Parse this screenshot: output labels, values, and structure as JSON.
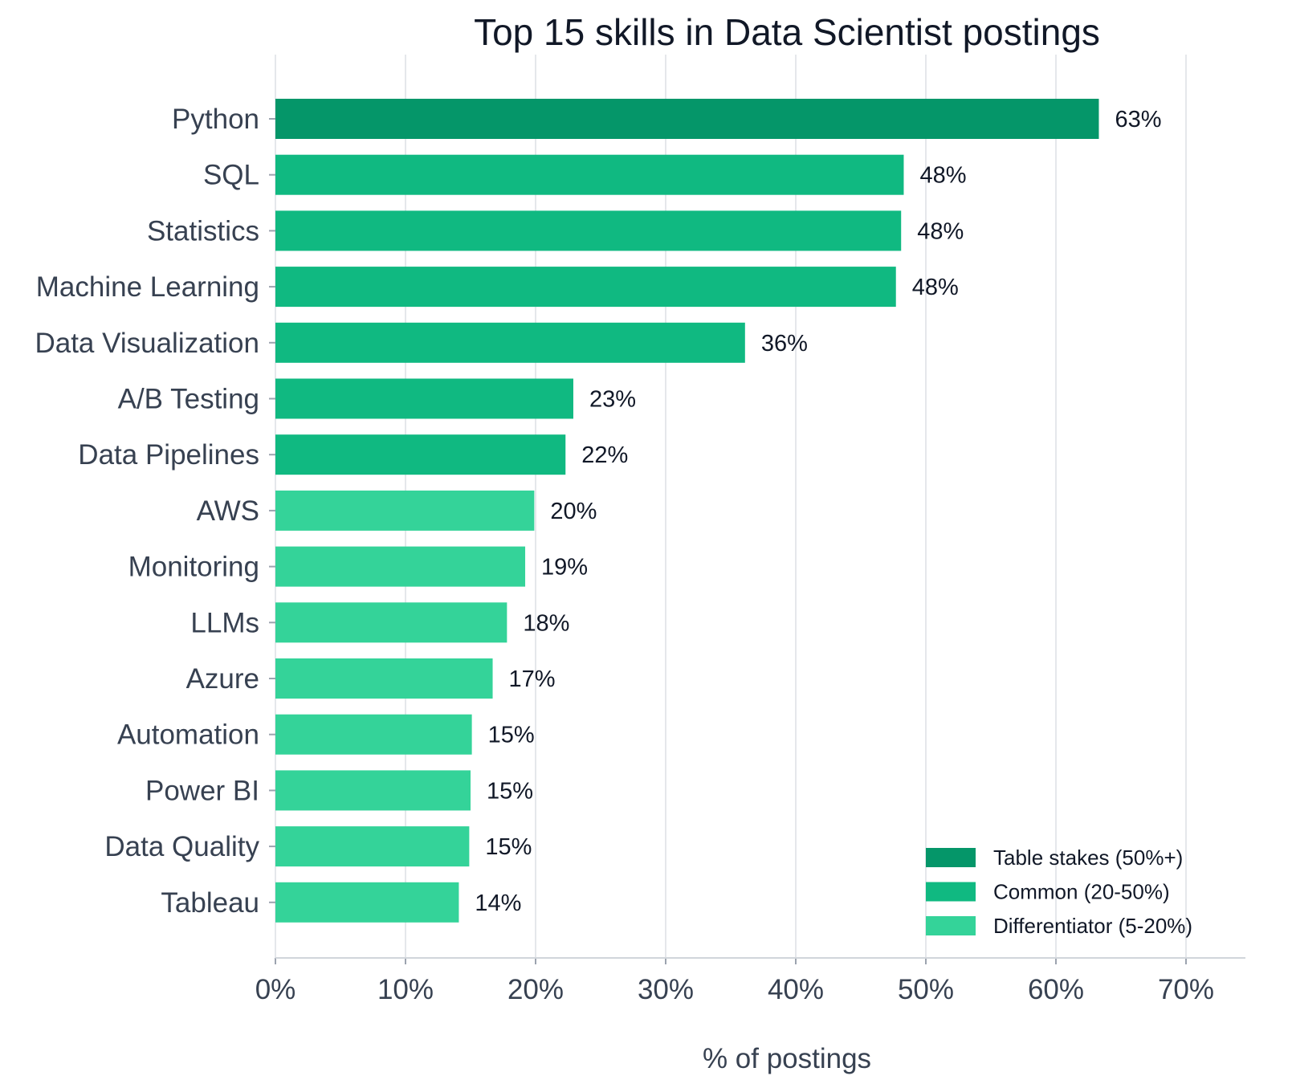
{
  "chart_data": {
    "type": "bar",
    "orientation": "horizontal",
    "title": "Top 15 skills in Data Scientist postings",
    "xlabel": "% of postings",
    "ylabel": "",
    "xlim": [
      0,
      75
    ],
    "xticks": [
      0,
      10,
      20,
      30,
      40,
      50,
      60,
      70
    ],
    "xtick_labels": [
      "0%",
      "10%",
      "20%",
      "30%",
      "40%",
      "50%",
      "60%",
      "70%"
    ],
    "grid": "vertical",
    "legend_position": "bottom-right",
    "categories": [
      "Python",
      "SQL",
      "Statistics",
      "Machine Learning",
      "Data Visualization",
      "A/B Testing",
      "Data Pipelines",
      "AWS",
      "Monitoring",
      "LLMs",
      "Azure",
      "Automation",
      "Power BI",
      "Data Quality",
      "Tableau"
    ],
    "values": [
      63.3,
      48.3,
      48.1,
      47.7,
      36.1,
      22.9,
      22.3,
      19.9,
      19.2,
      17.8,
      16.7,
      15.1,
      15.0,
      14.9,
      14.1
    ],
    "value_labels": [
      "63%",
      "48%",
      "48%",
      "48%",
      "36%",
      "23%",
      "22%",
      "20%",
      "19%",
      "18%",
      "17%",
      "15%",
      "15%",
      "15%",
      "14%"
    ],
    "tiers": [
      "Table stakes (50%+)",
      "Common (20-50%)",
      "Common (20-50%)",
      "Common (20-50%)",
      "Common (20-50%)",
      "Common (20-50%)",
      "Common (20-50%)",
      "Differentiator (5-20%)",
      "Differentiator (5-20%)",
      "Differentiator (5-20%)",
      "Differentiator (5-20%)",
      "Differentiator (5-20%)",
      "Differentiator (5-20%)",
      "Differentiator (5-20%)",
      "Differentiator (5-20%)"
    ],
    "legend": [
      {
        "name": "Table stakes (50%+)",
        "color": "#059669"
      },
      {
        "name": "Common (20-50%)",
        "color": "#10b981"
      },
      {
        "name": "Differentiator (5-20%)",
        "color": "#34d399"
      }
    ]
  }
}
